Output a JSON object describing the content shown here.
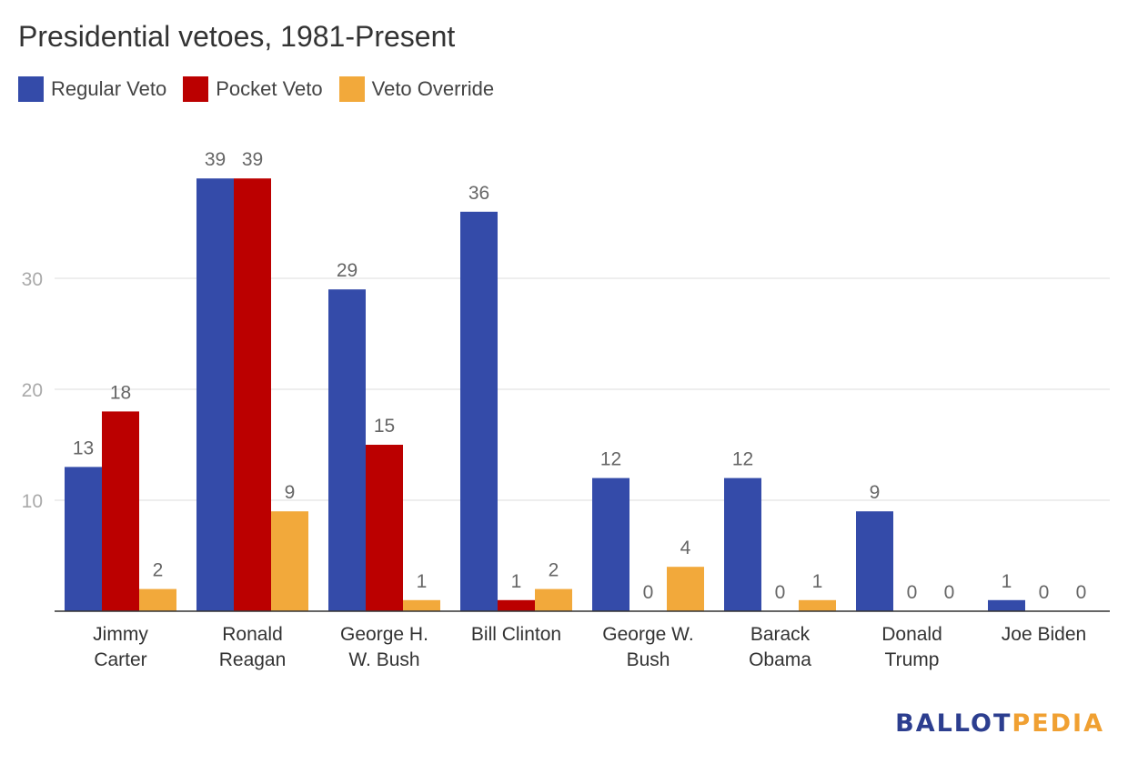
{
  "chart_data": {
    "type": "bar",
    "title": "Presidential vetoes, 1981-Present",
    "categories": [
      [
        "Jimmy",
        "Carter"
      ],
      [
        "Ronald",
        "Reagan"
      ],
      [
        "George H.",
        "W. Bush"
      ],
      [
        "Bill Clinton"
      ],
      [
        "George W.",
        "Bush"
      ],
      [
        "Barack",
        "Obama"
      ],
      [
        "Donald",
        "Trump"
      ],
      [
        "Joe Biden"
      ]
    ],
    "series": [
      {
        "name": "Regular Veto",
        "color": "#344ba9",
        "values": [
          13,
          39,
          29,
          36,
          12,
          12,
          9,
          1
        ]
      },
      {
        "name": "Pocket Veto",
        "color": "#bb0000",
        "values": [
          18,
          39,
          15,
          1,
          0,
          0,
          0,
          0
        ]
      },
      {
        "name": "Veto Override",
        "color": "#f2a93b",
        "values": [
          2,
          9,
          1,
          2,
          4,
          1,
          0,
          0
        ]
      }
    ],
    "yticks": [
      10,
      20,
      30
    ],
    "ylim": [
      0,
      40
    ],
    "grid": true,
    "legend": "top-left",
    "data_labels": true
  },
  "logo": {
    "part1": "BALLOT",
    "part2": "PEDIA"
  }
}
